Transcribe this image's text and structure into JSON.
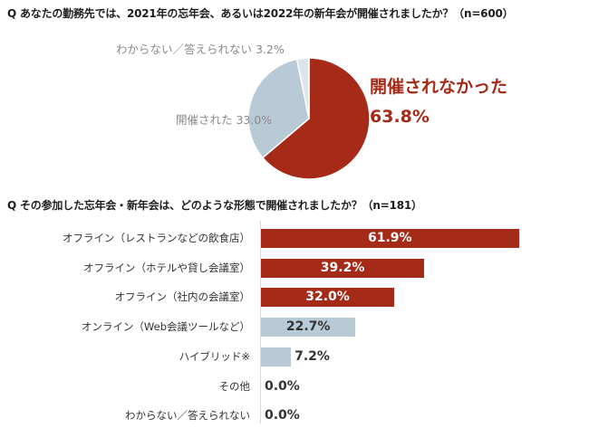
{
  "q1_title": "Q あなたの勤務先では、2021年の忘年会、あるいは2022年の新年会が開催されましたか？（n=600）",
  "q2_title": "Q その参加した忘年会・新年会は、どのような形態で開催されましたか？（n=181）",
  "pie_labels": {
    "unknown": "わからない／答えられない 3.2%",
    "held": "開催された 33.0%",
    "not_held_name": "開催されなかった",
    "not_held_value": "63.8%"
  },
  "chart_data": [
    {
      "type": "pie",
      "title": "Q あなたの勤務先では、2021年の忘年会、あるいは2022年の新年会が開催されましたか？（n=600）",
      "slices": [
        {
          "label": "開催されなかった",
          "value": 63.8,
          "color": "#a52a18"
        },
        {
          "label": "開催された",
          "value": 33.0,
          "color": "#b8cad6"
        },
        {
          "label": "わからない／答えられない",
          "value": 3.2,
          "color": "#dde5ec"
        }
      ]
    },
    {
      "type": "bar",
      "orientation": "horizontal",
      "title": "Q その参加した忘年会・新年会は、どのような形態で開催されましたか？（n=181）",
      "categories": [
        "オフライン（レストランなどの飲食店）",
        "オフライン（ホテルや貸し会議室）",
        "オフライン（社内の会議室）",
        "オンライン（Web会議ツールなど）",
        "ハイブリッド※",
        "その他",
        "わからない／答えられない"
      ],
      "values": [
        61.9,
        39.2,
        32.0,
        22.7,
        7.2,
        0.0,
        0.0
      ],
      "value_labels": [
        "61.9%",
        "39.2%",
        "32.0%",
        "22.7%",
        "7.2%",
        "0.0%",
        "0.0%"
      ],
      "colors": [
        "#a52a18",
        "#a52a18",
        "#a52a18",
        "#b8cad6",
        "#b8cad6",
        "#b8cad6",
        "#b8cad6"
      ],
      "xlim": [
        0,
        62
      ]
    }
  ]
}
